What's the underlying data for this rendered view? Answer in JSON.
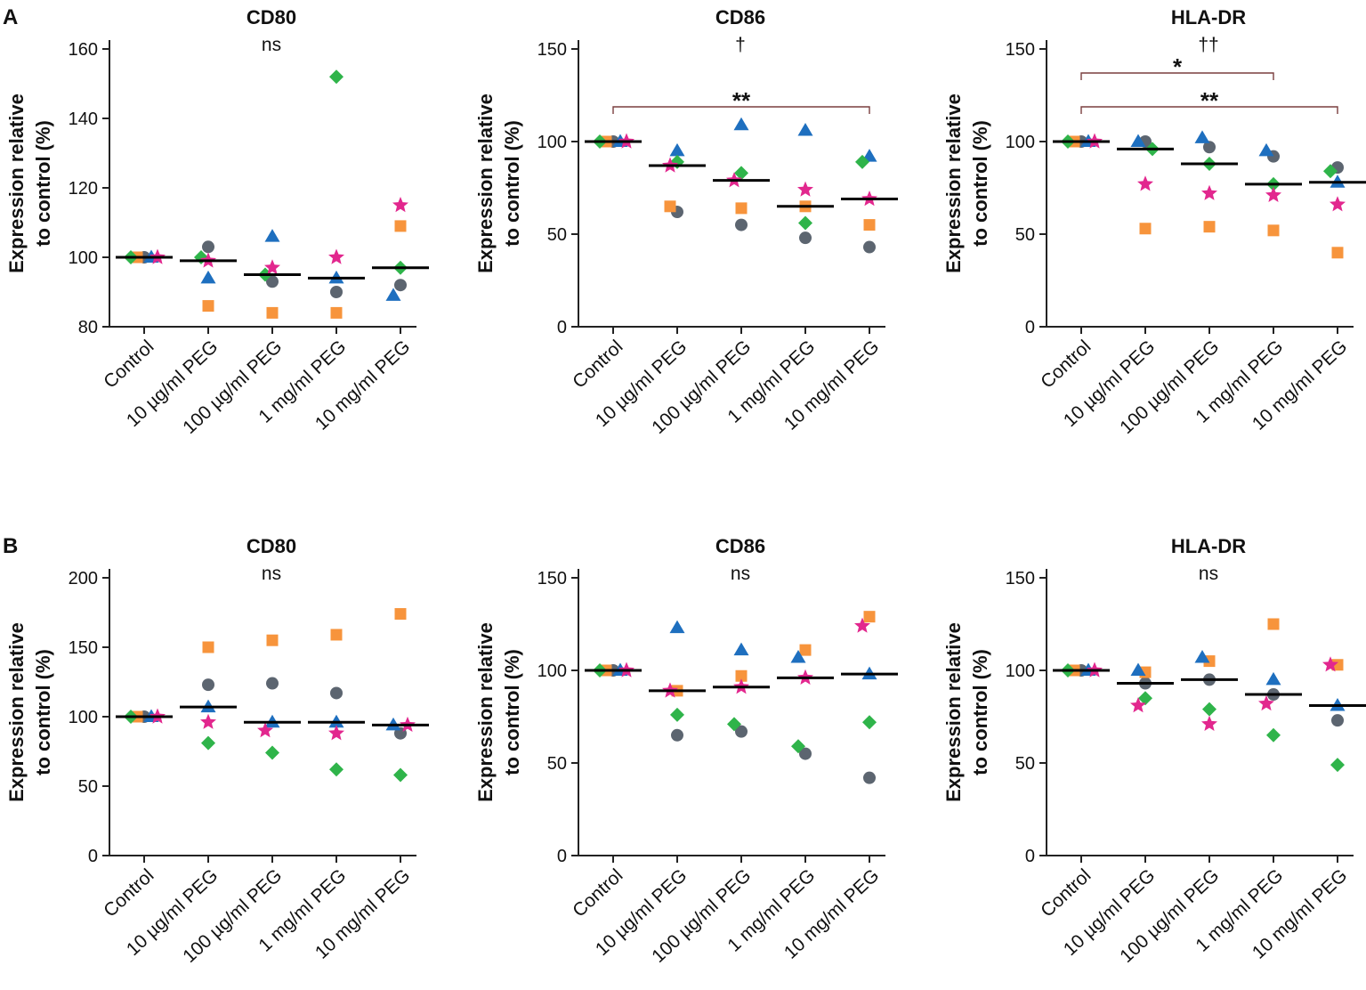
{
  "panel_labels": [
    "A",
    "B"
  ],
  "chart_data": [
    {
      "type": "scatter",
      "title": "CD80",
      "significance": "ns",
      "ylabel": [
        "Expression relative",
        "to control (%)"
      ],
      "categories": [
        "Control",
        "10 µg/ml PEG",
        "100 µg/ml PEG",
        "1 mg/ml PEG",
        "10 mg/ml PEG"
      ],
      "ylim": [
        80,
        160
      ],
      "yticks": [
        80,
        100,
        120,
        140,
        160
      ],
      "series": [
        {
          "marker": "circle",
          "color": "#5c6570",
          "values": [
            100,
            103,
            93,
            90,
            92
          ]
        },
        {
          "marker": "square",
          "color": "#f7943c",
          "values": [
            100,
            86,
            84,
            84,
            109
          ]
        },
        {
          "marker": "triangle",
          "color": "#1e6fbf",
          "values": [
            100,
            94,
            106,
            94,
            89
          ]
        },
        {
          "marker": "diamond",
          "color": "#2fb44a",
          "values": [
            100,
            100,
            95,
            152,
            97
          ]
        },
        {
          "marker": "star",
          "color": "#e2278e",
          "values": [
            100,
            99,
            97,
            100,
            115
          ]
        }
      ],
      "medians": [
        100,
        99,
        95,
        94,
        97
      ],
      "brackets": []
    },
    {
      "type": "scatter",
      "title": "CD86",
      "significance": "†",
      "ylabel": [
        "Expression relative",
        "to control (%)"
      ],
      "categories": [
        "Control",
        "10 µg/ml PEG",
        "100 µg/ml PEG",
        "1 mg/ml PEG",
        "10 mg/ml PEG"
      ],
      "ylim": [
        0,
        150
      ],
      "yticks": [
        0,
        50,
        100,
        150
      ],
      "series": [
        {
          "marker": "circle",
          "color": "#5c6570",
          "values": [
            100,
            62,
            55,
            48,
            43
          ]
        },
        {
          "marker": "square",
          "color": "#f7943c",
          "values": [
            100,
            65,
            64,
            65,
            55
          ]
        },
        {
          "marker": "triangle",
          "color": "#1e6fbf",
          "values": [
            100,
            95,
            109,
            106,
            92
          ]
        },
        {
          "marker": "diamond",
          "color": "#2fb44a",
          "values": [
            100,
            89,
            83,
            56,
            89
          ]
        },
        {
          "marker": "star",
          "color": "#e2278e",
          "values": [
            100,
            87,
            79,
            74,
            69
          ]
        }
      ],
      "medians": [
        100,
        87,
        79,
        65,
        69
      ],
      "brackets": [
        {
          "from": 0,
          "to": 4,
          "label": "**"
        }
      ]
    },
    {
      "type": "scatter",
      "title": "HLA-DR",
      "significance": "††",
      "ylabel": [
        "Expression relative",
        "to control (%)"
      ],
      "categories": [
        "Control",
        "10 µg/ml PEG",
        "100 µg/ml PEG",
        "1 mg/ml PEG",
        "10 mg/ml PEG"
      ],
      "ylim": [
        0,
        150
      ],
      "yticks": [
        0,
        50,
        100,
        150
      ],
      "series": [
        {
          "marker": "circle",
          "color": "#5c6570",
          "values": [
            100,
            100,
            97,
            92,
            86
          ]
        },
        {
          "marker": "square",
          "color": "#f7943c",
          "values": [
            100,
            53,
            54,
            52,
            40
          ]
        },
        {
          "marker": "triangle",
          "color": "#1e6fbf",
          "values": [
            100,
            100,
            102,
            95,
            78
          ]
        },
        {
          "marker": "diamond",
          "color": "#2fb44a",
          "values": [
            100,
            96,
            88,
            77,
            84
          ]
        },
        {
          "marker": "star",
          "color": "#e2278e",
          "values": [
            100,
            77,
            72,
            71,
            66
          ]
        }
      ],
      "medians": [
        100,
        96,
        88,
        77,
        78
      ],
      "brackets": [
        {
          "from": 0,
          "to": 4,
          "label": "**"
        },
        {
          "from": 0,
          "to": 3,
          "label": "*"
        }
      ]
    },
    {
      "type": "scatter",
      "title": "CD80",
      "significance": "ns",
      "ylabel": [
        "Expression relative",
        "to control (%)"
      ],
      "categories": [
        "Control",
        "10 µg/ml PEG",
        "100 µg/ml PEG",
        "1 mg/ml PEG",
        "10 mg/ml PEG"
      ],
      "ylim": [
        0,
        200
      ],
      "yticks": [
        0,
        50,
        100,
        150,
        200
      ],
      "series": [
        {
          "marker": "circle",
          "color": "#5c6570",
          "values": [
            100,
            123,
            124,
            117,
            88
          ]
        },
        {
          "marker": "square",
          "color": "#f7943c",
          "values": [
            100,
            150,
            155,
            159,
            174
          ]
        },
        {
          "marker": "triangle",
          "color": "#1e6fbf",
          "values": [
            100,
            107,
            96,
            96,
            94
          ]
        },
        {
          "marker": "diamond",
          "color": "#2fb44a",
          "values": [
            100,
            81,
            74,
            62,
            58
          ]
        },
        {
          "marker": "star",
          "color": "#e2278e",
          "values": [
            100,
            96,
            90,
            88,
            94
          ]
        }
      ],
      "medians": [
        100,
        107,
        96,
        96,
        94
      ],
      "brackets": []
    },
    {
      "type": "scatter",
      "title": "CD86",
      "significance": "ns",
      "ylabel": [
        "Expression relative",
        "to control (%)"
      ],
      "categories": [
        "Control",
        "10 µg/ml PEG",
        "100 µg/ml PEG",
        "1 mg/ml PEG",
        "10 mg/ml PEG"
      ],
      "ylim": [
        0,
        150
      ],
      "yticks": [
        0,
        50,
        100,
        150
      ],
      "series": [
        {
          "marker": "circle",
          "color": "#5c6570",
          "values": [
            100,
            65,
            67,
            55,
            42
          ]
        },
        {
          "marker": "square",
          "color": "#f7943c",
          "values": [
            100,
            89,
            97,
            111,
            129
          ]
        },
        {
          "marker": "triangle",
          "color": "#1e6fbf",
          "values": [
            100,
            123,
            111,
            107,
            98
          ]
        },
        {
          "marker": "diamond",
          "color": "#2fb44a",
          "values": [
            100,
            76,
            71,
            59,
            72
          ]
        },
        {
          "marker": "star",
          "color": "#e2278e",
          "values": [
            100,
            89,
            91,
            96,
            124
          ]
        }
      ],
      "medians": [
        100,
        89,
        91,
        96,
        98
      ],
      "brackets": []
    },
    {
      "type": "scatter",
      "title": "HLA-DR",
      "significance": "ns",
      "ylabel": [
        "Expression relative",
        "to control (%)"
      ],
      "categories": [
        "Control",
        "10 µg/ml PEG",
        "100 µg/ml PEG",
        "1 mg/ml PEG",
        "10 mg/ml PEG"
      ],
      "ylim": [
        0,
        150
      ],
      "yticks": [
        0,
        50,
        100,
        150
      ],
      "series": [
        {
          "marker": "circle",
          "color": "#5c6570",
          "values": [
            100,
            93,
            95,
            87,
            73
          ]
        },
        {
          "marker": "square",
          "color": "#f7943c",
          "values": [
            100,
            99,
            105,
            125,
            103
          ]
        },
        {
          "marker": "triangle",
          "color": "#1e6fbf",
          "values": [
            100,
            100,
            107,
            95,
            81
          ]
        },
        {
          "marker": "diamond",
          "color": "#2fb44a",
          "values": [
            100,
            85,
            79,
            65,
            49
          ]
        },
        {
          "marker": "star",
          "color": "#e2278e",
          "values": [
            100,
            81,
            71,
            82,
            103
          ]
        }
      ],
      "medians": [
        100,
        93,
        95,
        87,
        81
      ],
      "brackets": []
    }
  ]
}
